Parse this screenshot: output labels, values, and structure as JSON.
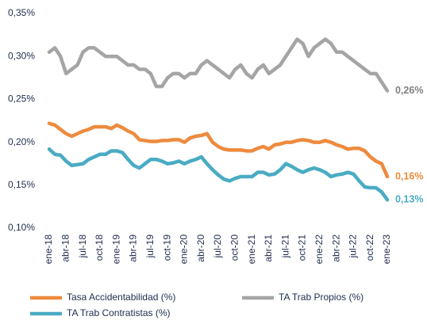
{
  "chart_data": {
    "type": "line",
    "categories": [
      "ene-18",
      null,
      null,
      "abr-18",
      null,
      null,
      "jul-18",
      null,
      null,
      "oct-18",
      null,
      null,
      "ene-19",
      null,
      null,
      "abr-19",
      null,
      null,
      "jul-19",
      null,
      null,
      "oct-19",
      null,
      null,
      "ene-20",
      null,
      null,
      "abr-20",
      null,
      null,
      "jul-20",
      null,
      null,
      "oct-20",
      null,
      null,
      "ene-21",
      null,
      null,
      "abr-21",
      null,
      null,
      "jul-21",
      null,
      null,
      "oct-21",
      null,
      null,
      "ene-22",
      null,
      null,
      "abr-22",
      null,
      null,
      "jul-22",
      null,
      null,
      "oct-22",
      null,
      null,
      "ene-23"
    ],
    "series": [
      {
        "name": "Tasa Accidentabilidad (%)",
        "color": "#ed8b3f",
        "values": [
          0.222,
          0.22,
          0.215,
          0.21,
          0.207,
          0.21,
          0.213,
          0.215,
          0.218,
          0.218,
          0.218,
          0.216,
          0.22,
          0.217,
          0.213,
          0.21,
          0.203,
          0.202,
          0.201,
          0.201,
          0.202,
          0.202,
          0.203,
          0.203,
          0.2,
          0.205,
          0.207,
          0.208,
          0.21,
          0.2,
          0.195,
          0.192,
          0.191,
          0.191,
          0.191,
          0.19,
          0.19,
          0.193,
          0.195,
          0.192,
          0.197,
          0.198,
          0.2,
          0.2,
          0.202,
          0.203,
          0.202,
          0.2,
          0.2,
          0.202,
          0.2,
          0.197,
          0.195,
          0.192,
          0.193,
          0.193,
          0.19,
          0.183,
          0.178,
          0.175,
          0.16
        ],
        "value_labels": [
          null,
          null,
          null,
          null,
          null,
          null,
          null,
          null,
          null,
          null,
          null,
          null,
          null,
          null,
          null,
          null,
          null,
          null,
          null,
          null,
          null,
          null,
          null,
          null,
          null,
          null,
          null,
          null,
          null,
          null,
          null,
          null,
          null,
          null,
          null,
          null,
          null,
          null,
          null,
          null,
          null,
          null,
          null,
          null,
          null,
          null,
          null,
          null,
          null,
          null,
          null,
          null,
          null,
          null,
          null,
          null,
          null,
          null,
          null,
          null,
          "0,16%"
        ]
      },
      {
        "name": "TA Trab Propios (%)",
        "color": "#a5a5a5",
        "values": [
          0.305,
          0.31,
          0.3,
          0.28,
          0.285,
          0.29,
          0.305,
          0.31,
          0.31,
          0.305,
          0.3,
          0.3,
          0.3,
          0.295,
          0.29,
          0.29,
          0.285,
          0.285,
          0.28,
          0.265,
          0.265,
          0.275,
          0.28,
          0.28,
          0.275,
          0.28,
          0.28,
          0.29,
          0.295,
          0.29,
          0.285,
          0.28,
          0.275,
          0.285,
          0.29,
          0.28,
          0.275,
          0.285,
          0.29,
          0.28,
          0.285,
          0.29,
          0.3,
          0.31,
          0.32,
          0.315,
          0.3,
          0.31,
          0.315,
          0.32,
          0.315,
          0.305,
          0.305,
          0.3,
          0.295,
          0.29,
          0.285,
          0.28,
          0.28,
          0.27,
          0.26
        ],
        "value_labels": [
          null,
          null,
          null,
          null,
          null,
          null,
          null,
          null,
          null,
          null,
          null,
          null,
          null,
          null,
          null,
          null,
          null,
          null,
          null,
          null,
          null,
          null,
          null,
          null,
          null,
          null,
          null,
          null,
          null,
          null,
          null,
          null,
          null,
          null,
          null,
          null,
          null,
          null,
          null,
          null,
          null,
          null,
          null,
          null,
          null,
          null,
          null,
          null,
          null,
          null,
          null,
          null,
          null,
          null,
          null,
          null,
          null,
          null,
          null,
          null,
          "0,26%"
        ]
      },
      {
        "name": "TA Trab Contratistas (%)",
        "color": "#4aabc4",
        "values": [
          0.192,
          0.186,
          0.185,
          0.178,
          0.173,
          0.174,
          0.175,
          0.18,
          0.183,
          0.186,
          0.186,
          0.19,
          0.19,
          0.188,
          0.18,
          0.173,
          0.17,
          0.175,
          0.18,
          0.18,
          0.178,
          0.175,
          0.176,
          0.178,
          0.175,
          0.178,
          0.18,
          0.183,
          0.175,
          0.168,
          0.162,
          0.157,
          0.155,
          0.158,
          0.16,
          0.16,
          0.16,
          0.165,
          0.165,
          0.162,
          0.163,
          0.168,
          0.175,
          0.172,
          0.168,
          0.165,
          0.168,
          0.17,
          0.168,
          0.165,
          0.16,
          0.162,
          0.163,
          0.165,
          0.163,
          0.155,
          0.148,
          0.147,
          0.147,
          0.142,
          0.133
        ],
        "value_labels": [
          null,
          null,
          null,
          null,
          null,
          null,
          null,
          null,
          null,
          null,
          null,
          null,
          null,
          null,
          null,
          null,
          null,
          null,
          null,
          null,
          null,
          null,
          null,
          null,
          null,
          null,
          null,
          null,
          null,
          null,
          null,
          null,
          null,
          null,
          null,
          null,
          null,
          null,
          null,
          null,
          null,
          null,
          null,
          null,
          null,
          null,
          null,
          null,
          null,
          null,
          null,
          null,
          null,
          null,
          null,
          null,
          null,
          null,
          null,
          null,
          "0,13%"
        ]
      }
    ],
    "ylim": [
      0.1,
      0.35
    ],
    "yticks": [
      {
        "value": 0.1,
        "label": "0,10%"
      },
      {
        "value": 0.15,
        "label": "0,15%"
      },
      {
        "value": 0.2,
        "label": "0,20%"
      },
      {
        "value": 0.25,
        "label": "0,25%"
      },
      {
        "value": 0.3,
        "label": "0,30%"
      },
      {
        "value": 0.35,
        "label": "0,35%"
      }
    ],
    "grid": false,
    "legend": "bottom"
  }
}
